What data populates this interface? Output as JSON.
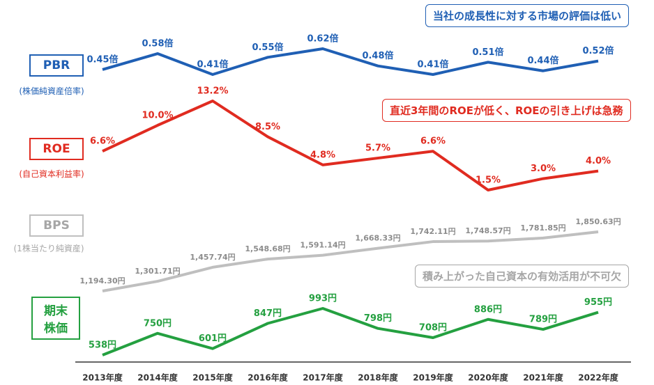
{
  "chart_data": {
    "type": "line",
    "categories": [
      "2013年度",
      "2014年度",
      "2015年度",
      "2016年度",
      "2017年度",
      "2018年度",
      "2019年度",
      "2020年度",
      "2021年度",
      "2022年度"
    ],
    "series": [
      {
        "name": "PBR",
        "subtitle": "(株価純資産倍率)",
        "color": "#1f5fb4",
        "note": "当社の成長性に対する市場の評価は低い",
        "values": [
          0.45,
          0.58,
          0.41,
          0.55,
          0.62,
          0.48,
          0.41,
          0.51,
          0.44,
          0.52
        ],
        "value_labels": [
          "0.45倍",
          "0.58倍",
          "0.41倍",
          "0.55倍",
          "0.62倍",
          "0.48倍",
          "0.41倍",
          "0.51倍",
          "0.44倍",
          "0.52倍"
        ]
      },
      {
        "name": "ROE",
        "subtitle": "(自己資本利益率)",
        "color": "#e02b20",
        "note": "直近3年間のROEが低く、ROEの引き上げは急務",
        "values": [
          6.6,
          10.0,
          13.2,
          8.5,
          4.8,
          5.7,
          6.6,
          1.5,
          3.0,
          4.0
        ],
        "value_labels": [
          "6.6%",
          "10.0%",
          "13.2%",
          "8.5%",
          "4.8%",
          "5.7%",
          "6.6%",
          "1.5%",
          "3.0%",
          "4.0%"
        ]
      },
      {
        "name": "BPS",
        "subtitle": "(1株当たり純資産)",
        "color": "#bfbfbf",
        "note": "積み上がった自己資本の有効活用が不可欠",
        "values": [
          1194.3,
          1301.71,
          1457.74,
          1548.68,
          1591.14,
          1668.33,
          1742.11,
          1748.57,
          1781.85,
          1850.63
        ],
        "value_labels": [
          "1,194.30円",
          "1,301.71円",
          "1,457.74円",
          "1,548.68円",
          "1,591.14円",
          "1,668.33円",
          "1,742.11円",
          "1,748.57円",
          "1,781.85円",
          "1,850.63円"
        ]
      },
      {
        "name": "期末株価",
        "color": "#24a040",
        "values": [
          538,
          750,
          601,
          847,
          993,
          798,
          708,
          886,
          789,
          955
        ],
        "value_labels": [
          "538円",
          "750円",
          "601円",
          "847円",
          "993円",
          "798円",
          "708円",
          "886円",
          "789円",
          "955円"
        ]
      }
    ]
  }
}
